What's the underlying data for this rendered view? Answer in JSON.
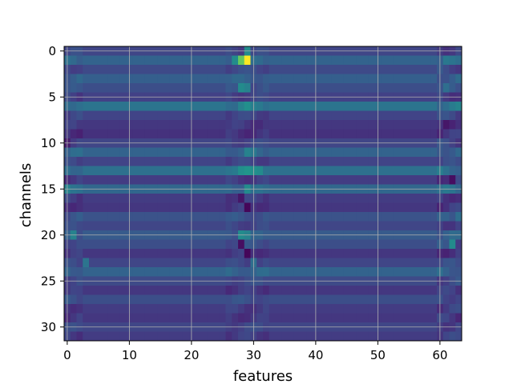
{
  "chart_data": {
    "type": "heatmap",
    "title": "",
    "xlabel": "features",
    "ylabel": "channels",
    "n_rows": 32,
    "n_cols": 64,
    "xlim": [
      -0.5,
      63.5
    ],
    "ylim": [
      31.5,
      -0.5
    ],
    "x_ticks": [
      0,
      10,
      20,
      30,
      40,
      50,
      60
    ],
    "y_ticks": [
      0,
      5,
      10,
      15,
      20,
      25,
      30
    ],
    "grid": true,
    "colormap": "viridis",
    "value_range": [
      0,
      1
    ],
    "row_base": [
      0.26,
      0.4,
      0.28,
      0.38,
      0.3,
      0.24,
      0.48,
      0.25,
      0.2,
      0.18,
      0.26,
      0.4,
      0.25,
      0.46,
      0.22,
      0.42,
      0.22,
      0.2,
      0.32,
      0.26,
      0.36,
      0.3,
      0.2,
      0.26,
      0.4,
      0.28,
      0.2,
      0.3,
      0.22,
      0.2,
      0.26,
      0.22
    ],
    "hotspots": [
      {
        "row": 1,
        "col": 28,
        "value": 0.85
      },
      {
        "row": 1,
        "col": 29,
        "value": 1.0
      },
      {
        "row": 1,
        "col": 27,
        "value": 0.6
      },
      {
        "row": 0,
        "col": 29,
        "value": 0.6
      },
      {
        "row": 4,
        "col": 28,
        "value": 0.6
      },
      {
        "row": 4,
        "col": 29,
        "value": 0.55
      },
      {
        "row": 6,
        "col": 29,
        "value": 0.62
      },
      {
        "row": 6,
        "col": 28,
        "value": 0.55
      },
      {
        "row": 11,
        "col": 29,
        "value": 0.55
      },
      {
        "row": 11,
        "col": 30,
        "value": 0.5
      },
      {
        "row": 13,
        "col": 28,
        "value": 0.62
      },
      {
        "row": 13,
        "col": 29,
        "value": 0.65
      },
      {
        "row": 13,
        "col": 30,
        "value": 0.62
      },
      {
        "row": 13,
        "col": 31,
        "value": 0.6
      },
      {
        "row": 15,
        "col": 29,
        "value": 0.6
      },
      {
        "row": 15,
        "col": 0,
        "value": 0.55
      },
      {
        "row": 20,
        "col": 28,
        "value": 0.6
      },
      {
        "row": 20,
        "col": 29,
        "value": 0.55
      },
      {
        "row": 20,
        "col": 1,
        "value": 0.55
      },
      {
        "row": 21,
        "col": 62,
        "value": 0.6
      },
      {
        "row": 1,
        "col": 61,
        "value": 0.5
      },
      {
        "row": 4,
        "col": 61,
        "value": 0.45
      },
      {
        "row": 18,
        "col": 63,
        "value": 0.45
      },
      {
        "row": 23,
        "col": 3,
        "value": 0.48
      },
      {
        "row": 23,
        "col": 30,
        "value": 0.45
      }
    ],
    "cold_spots": [
      {
        "row": 17,
        "col": 29,
        "value": 0.02
      },
      {
        "row": 22,
        "col": 29,
        "value": 0.02
      },
      {
        "row": 21,
        "col": 28,
        "value": 0.05
      },
      {
        "row": 16,
        "col": 28,
        "value": 0.08
      },
      {
        "row": 10,
        "col": 0,
        "value": 0.1
      },
      {
        "row": 14,
        "col": 62,
        "value": 0.05
      },
      {
        "row": 8,
        "col": 61,
        "value": 0.08
      }
    ]
  }
}
